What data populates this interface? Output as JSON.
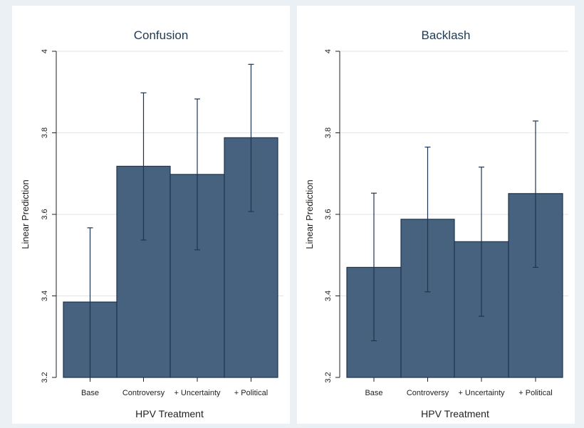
{
  "chart_data": [
    {
      "type": "bar",
      "title": "Confusion",
      "xlabel": "HPV Treatment",
      "ylabel": "Linear Prediction",
      "categories": [
        "Base",
        "Controversy",
        "+ Uncertainty",
        "+ Political"
      ],
      "values": [
        3.385,
        3.718,
        3.698,
        3.788
      ],
      "ci_low": [
        3.2,
        3.537,
        3.513,
        3.607
      ],
      "ci_high": [
        3.567,
        3.898,
        3.883,
        3.968
      ],
      "ylim": [
        3.2,
        4.0
      ],
      "yticks": [
        "3.2",
        "3.4",
        "3.6",
        "3.8",
        "4"
      ],
      "grid": true,
      "bar_color": "#46627e"
    },
    {
      "type": "bar",
      "title": "Backlash",
      "xlabel": "HPV Treatment",
      "ylabel": "Linear Prediction",
      "categories": [
        "Base",
        "Controversy",
        "+ Uncertainty",
        "+ Political"
      ],
      "values": [
        3.47,
        3.588,
        3.533,
        3.651
      ],
      "ci_low": [
        3.29,
        3.41,
        3.35,
        3.47
      ],
      "ci_high": [
        3.652,
        3.765,
        3.716,
        3.829
      ],
      "ylim": [
        3.2,
        4.0
      ],
      "yticks": [
        "3.2",
        "3.4",
        "3.6",
        "3.8",
        "4"
      ],
      "grid": true,
      "bar_color": "#46627e"
    }
  ]
}
